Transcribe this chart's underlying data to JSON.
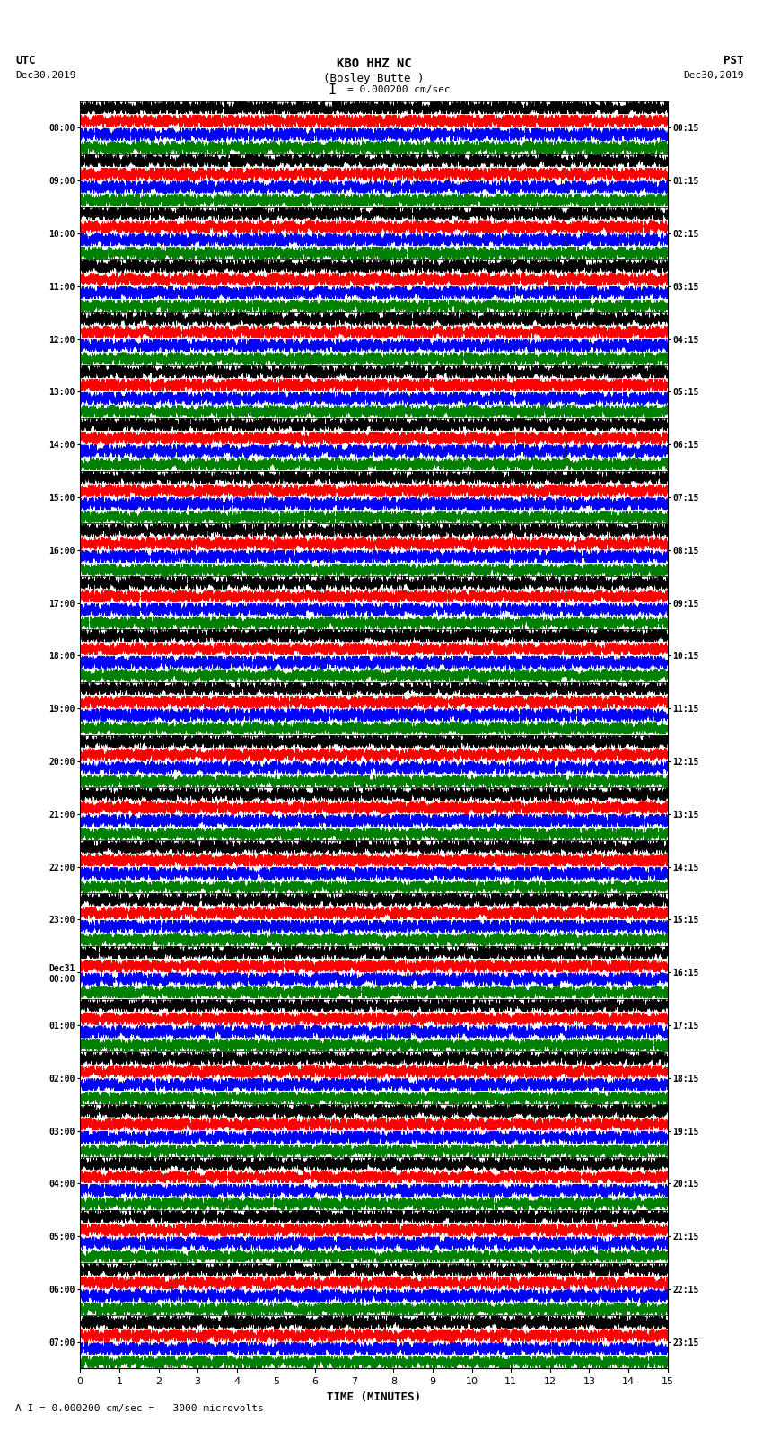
{
  "title_line1": "KBO HHZ NC",
  "title_line2": "(Bosley Butte )",
  "scale_label": "= 0.000200 cm/sec",
  "bottom_label": "A I = 0.000200 cm/sec =   3000 microvolts",
  "xlabel": "TIME (MINUTES)",
  "left_header": "UTC",
  "left_date": "Dec30,2019",
  "right_header": "PST",
  "right_date": "Dec30,2019",
  "utc_times": [
    "08:00",
    "09:00",
    "10:00",
    "11:00",
    "12:00",
    "13:00",
    "14:00",
    "15:00",
    "16:00",
    "17:00",
    "18:00",
    "19:00",
    "20:00",
    "21:00",
    "22:00",
    "23:00",
    "Dec31\n00:00",
    "01:00",
    "02:00",
    "03:00",
    "04:00",
    "05:00",
    "06:00",
    "07:00"
  ],
  "pst_times": [
    "00:15",
    "01:15",
    "02:15",
    "03:15",
    "04:15",
    "05:15",
    "06:15",
    "07:15",
    "08:15",
    "09:15",
    "10:15",
    "11:15",
    "12:15",
    "13:15",
    "14:15",
    "15:15",
    "16:15",
    "17:15",
    "18:15",
    "19:15",
    "20:15",
    "21:15",
    "22:15",
    "23:15"
  ],
  "sub_colors": [
    "black",
    "red",
    "blue",
    "green"
  ],
  "num_hours": 24,
  "fig_width": 8.5,
  "fig_height": 16.13,
  "bg_color": "white",
  "samples_per_trace": 54000,
  "noise_seed": 123
}
